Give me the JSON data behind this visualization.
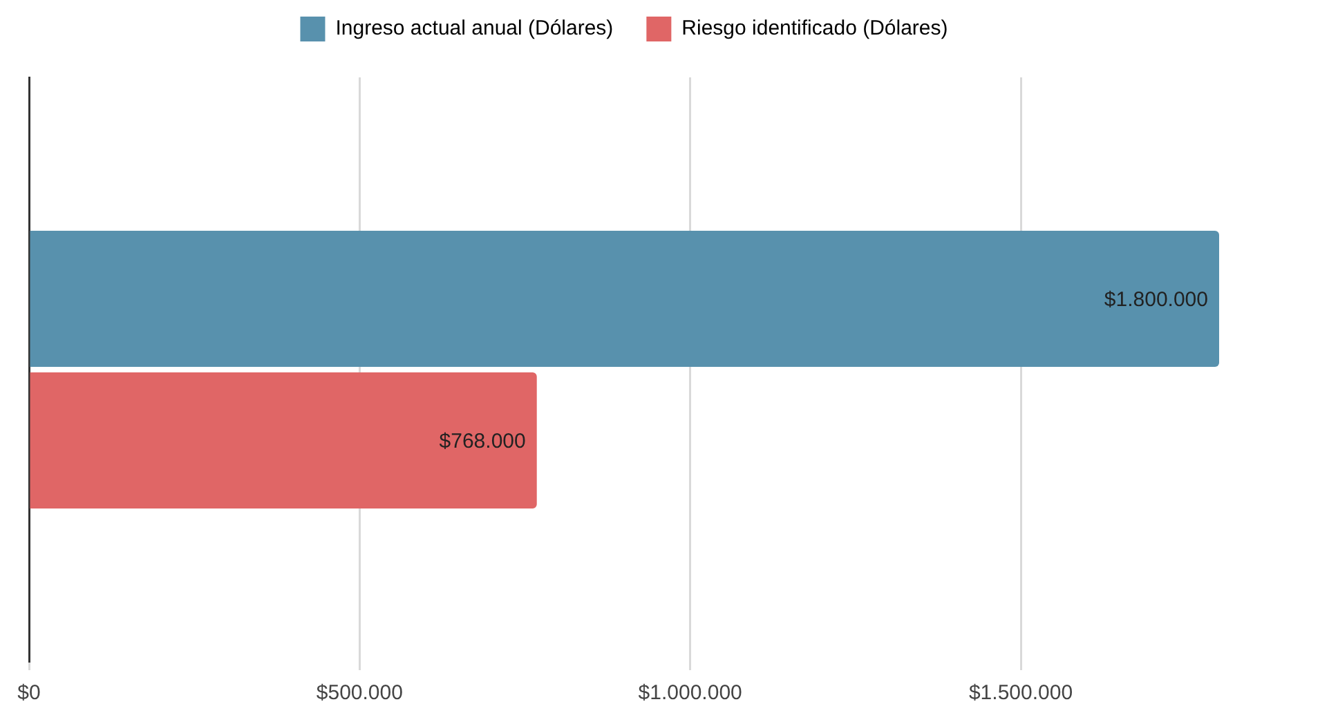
{
  "chart_data": {
    "type": "bar",
    "orientation": "horizontal",
    "categories": [
      null
    ],
    "series": [
      {
        "name": "Ingreso actual anual (Dólares)",
        "color": "#5891ad",
        "values": [
          1800000
        ],
        "value_labels": [
          "$1.800.000"
        ]
      },
      {
        "name": "Riesgo identificado (Dólares)",
        "color": "#e06666",
        "values": [
          768000
        ],
        "value_labels": [
          "$768.000"
        ]
      }
    ],
    "xlim": [
      0,
      1800000
    ],
    "xticks": [
      {
        "value": 0,
        "label": "$0"
      },
      {
        "value": 500000,
        "label": "$500.000"
      },
      {
        "value": 1000000,
        "label": "$1.000.000"
      },
      {
        "value": 1500000,
        "label": "$1.500.000"
      }
    ],
    "grid": "x",
    "legend": "top"
  }
}
